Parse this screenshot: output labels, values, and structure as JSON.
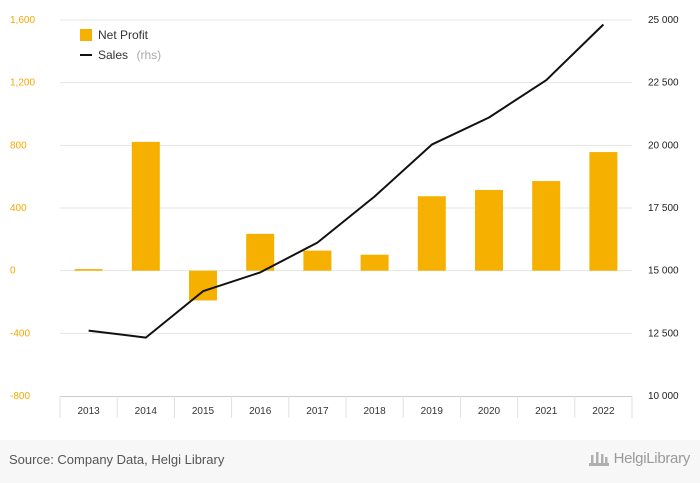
{
  "chart_data": {
    "type": "bar",
    "categories": [
      "2013",
      "2014",
      "2015",
      "2016",
      "2017",
      "2018",
      "2019",
      "2020",
      "2021",
      "2022"
    ],
    "series": [
      {
        "name": "Net Profit",
        "type": "bar",
        "axis": "left",
        "values": [
          10,
          822,
          -190,
          235,
          128,
          102,
          475,
          515,
          572,
          757
        ],
        "color": "#f5b000"
      },
      {
        "name": "Sales",
        "type": "line",
        "axis": "right",
        "values": [
          12610,
          12330,
          14180,
          14930,
          16120,
          17960,
          20030,
          21110,
          22600,
          24820
        ],
        "color": "#111111"
      }
    ],
    "left_axis": {
      "ylim": [
        -800,
        1600
      ],
      "ticks": [
        -800,
        -400,
        0,
        400,
        800,
        1200,
        1600
      ],
      "tick_labels": [
        "-800",
        "-400",
        "0",
        "400",
        "800",
        "1,200",
        "1,600"
      ]
    },
    "right_axis": {
      "ylim": [
        10000,
        25000
      ],
      "ticks": [
        10000,
        12500,
        15000,
        17500,
        20000,
        22500,
        25000
      ],
      "tick_labels": [
        "10 000",
        "12 500",
        "15 000",
        "17 500",
        "20 000",
        "22 500",
        "25 000"
      ]
    },
    "legend": {
      "position": "top-left",
      "items": [
        {
          "label": "Net Profit",
          "suffix": ""
        },
        {
          "label": "Sales",
          "suffix": "(rhs)"
        }
      ]
    },
    "grid": true
  },
  "footer": {
    "source": "Source: Company Data, Helgi Library",
    "logo_text": "HelgiLibrary"
  },
  "colors": {
    "bar": "#f5b000",
    "line": "#111111",
    "left_axis_text": "#f5a800",
    "grid": "#e6e6e6"
  }
}
